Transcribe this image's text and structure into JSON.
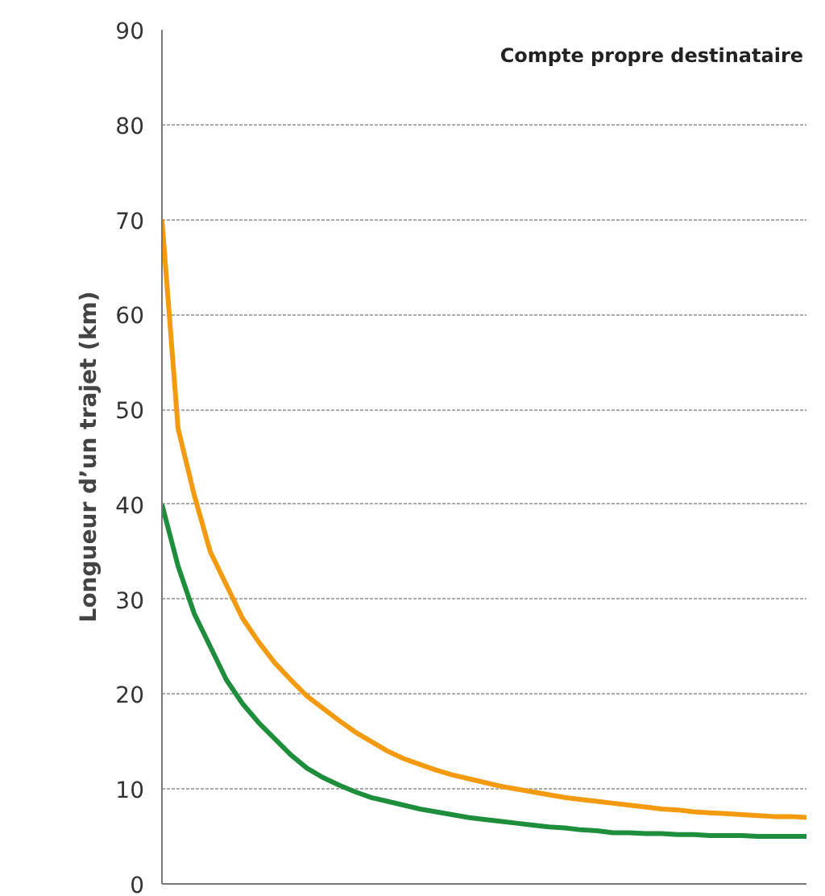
{
  "chart_data": {
    "type": "line",
    "ylabel": "Longueur d’un trajet (km)",
    "annotations": [
      "Compte propre destinataire"
    ],
    "categories": [
      null,
      null,
      null,
      null,
      null,
      null,
      null,
      null,
      null,
      null,
      null,
      null,
      null,
      null,
      null,
      null,
      null,
      null,
      null,
      null,
      null,
      null,
      null,
      null,
      null,
      null,
      null,
      null,
      null,
      null,
      null,
      null,
      null,
      null,
      null,
      null,
      null,
      null,
      null,
      null,
      null
    ],
    "series": [
      {
        "color": "#f39a0e",
        "values": [
          70,
          48,
          41,
          35,
          31.5,
          28,
          25.5,
          23.3,
          21.5,
          19.8,
          18.5,
          17.2,
          16,
          15,
          14,
          13.2,
          12.6,
          12,
          11.5,
          11.1,
          10.7,
          10.3,
          10,
          9.7,
          9.4,
          9.1,
          8.9,
          8.7,
          8.5,
          8.3,
          8.1,
          7.9,
          7.8,
          7.6,
          7.5,
          7.4,
          7.3,
          7.2,
          7.1,
          7.1,
          7
        ]
      },
      {
        "color": "#1f8e3c",
        "values": [
          40,
          33.5,
          28.5,
          25,
          21.5,
          19,
          17,
          15.3,
          13.6,
          12.2,
          11.2,
          10.4,
          9.7,
          9.1,
          8.7,
          8.3,
          7.9,
          7.6,
          7.3,
          7,
          6.8,
          6.6,
          6.4,
          6.2,
          6,
          5.9,
          5.7,
          5.6,
          5.4,
          5.4,
          5.3,
          5.3,
          5.2,
          5.2,
          5.1,
          5.1,
          5.1,
          5,
          5,
          5,
          5
        ]
      }
    ],
    "ylim": [
      0,
      90
    ],
    "yticks": [
      0,
      10,
      20,
      30,
      40,
      50,
      60,
      70,
      80,
      90
    ],
    "grid": "y",
    "marker": "none",
    "line_style": "solid",
    "tick_labels": "y"
  }
}
